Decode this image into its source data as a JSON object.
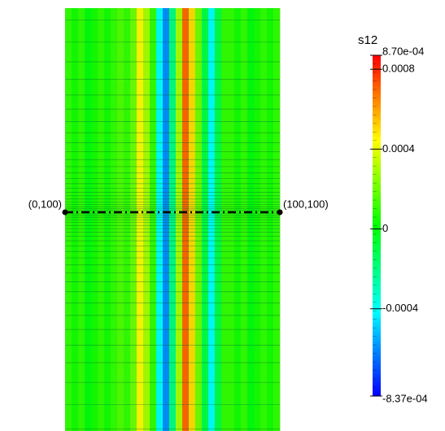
{
  "chart_data": {
    "type": "field",
    "title": "s12",
    "columns": [
      0.0001,
      5e-05,
      0.0001,
      0,
      5e-05,
      0.0001,
      5e-05,
      0.0001,
      0.00015,
      0.0001,
      0.0002,
      0.00045,
      0.0003,
      0.0001,
      -0.0004,
      -0.0006,
      -0.0002,
      0.0003,
      0.0007,
      0.0005,
      0.0002,
      -0.0001,
      -0.0004,
      -0.0001,
      0.0001,
      0.0001,
      5e-05,
      0.0001,
      0,
      5e-05,
      0.0001,
      5e-05,
      0.0001
    ],
    "colormap": [
      "#0000ff",
      "#00ffff",
      "#00ff00",
      "#ffff00",
      "#ff0000"
    ],
    "clim": [
      -0.000837,
      0.00087
    ],
    "cticks": [
      {
        "value": 0.00087,
        "label": "8.70e-04"
      },
      0.0008,
      0.0004,
      0,
      -0.0004,
      {
        "value": -0.000837,
        "label": "-8.37e-04"
      }
    ],
    "annotations": [
      "(0,100)",
      "(100,100)"
    ]
  }
}
